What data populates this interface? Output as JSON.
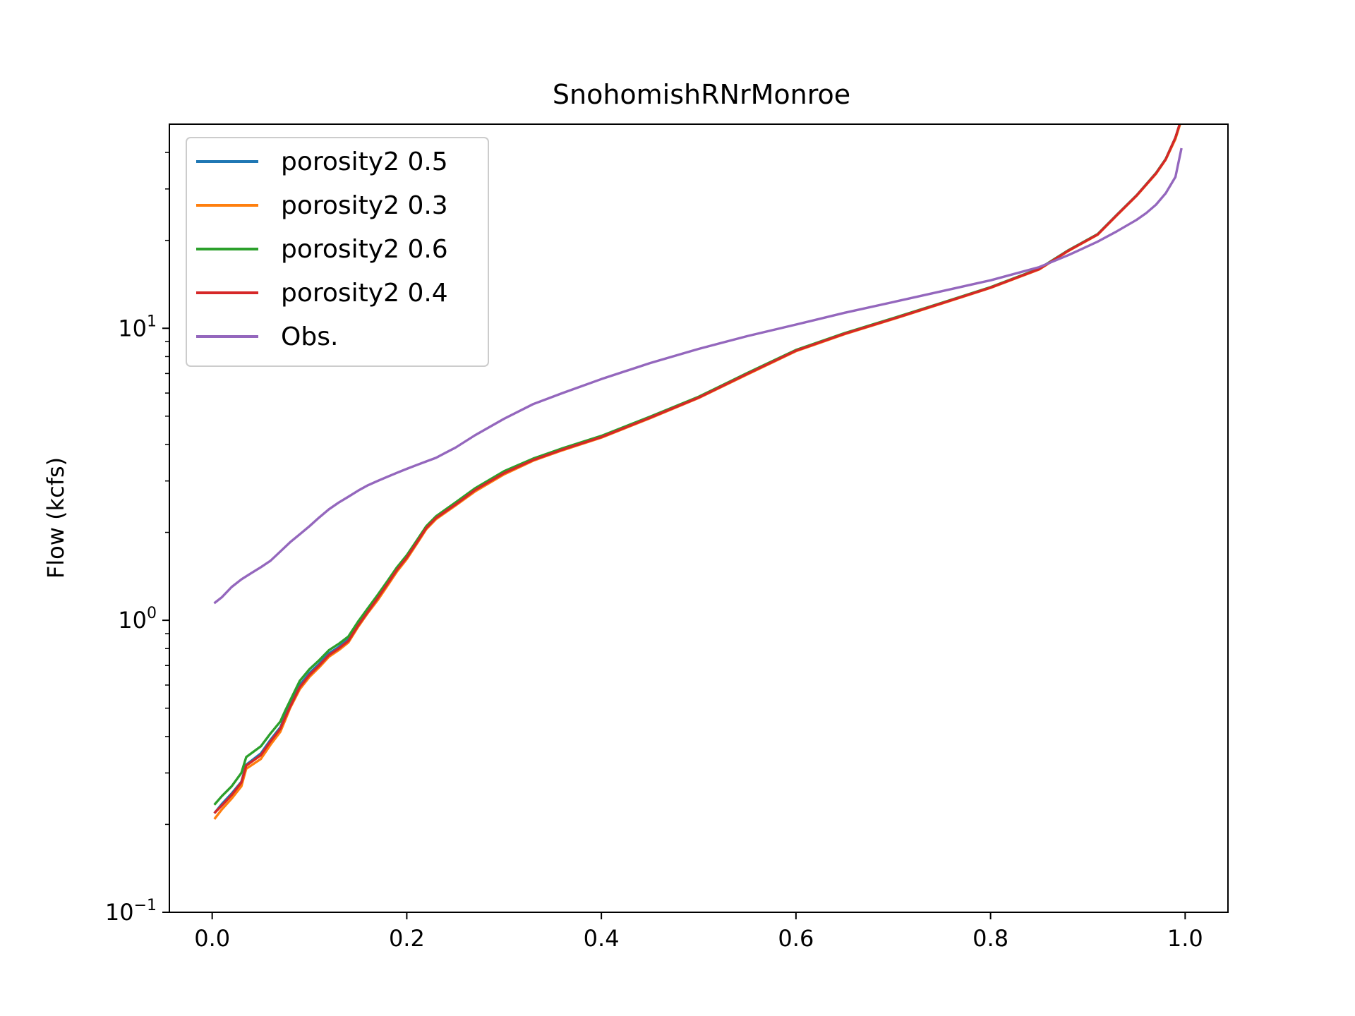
{
  "chart_data": {
    "type": "line",
    "title": "SnohomishRNrMonroe",
    "xlabel": "",
    "ylabel": "Flow (kcfs)",
    "xlim": [
      -0.044,
      1.044
    ],
    "ylim": [
      0.1,
      50
    ],
    "y_scale": "log",
    "xticks": [
      0.0,
      0.2,
      0.4,
      0.6,
      0.8,
      1.0
    ],
    "xtick_labels": [
      "0.0",
      "0.2",
      "0.4",
      "0.6",
      "0.8",
      "1.0"
    ],
    "yticks": [
      {
        "value": 0.1,
        "base": "10",
        "exponent": "−1"
      },
      {
        "value": 1,
        "base": "10",
        "exponent": "0"
      },
      {
        "value": 10,
        "base": "10",
        "exponent": "1"
      }
    ],
    "grid": false,
    "legend": {
      "placement": "upper-left"
    },
    "series": [
      {
        "name": "porosity2 0.5",
        "color": "#1f77b4",
        "x": [
          0.003,
          0.01,
          0.02,
          0.03,
          0.035,
          0.05,
          0.06,
          0.07,
          0.075,
          0.08,
          0.09,
          0.1,
          0.11,
          0.12,
          0.13,
          0.14,
          0.15,
          0.16,
          0.17,
          0.18,
          0.19,
          0.2,
          0.21,
          0.22,
          0.23,
          0.25,
          0.27,
          0.3,
          0.33,
          0.36,
          0.4,
          0.45,
          0.5,
          0.55,
          0.6,
          0.65,
          0.7,
          0.75,
          0.8,
          0.85,
          0.88,
          0.91,
          0.93,
          0.95,
          0.97,
          0.98,
          0.99,
          0.996
        ],
        "y": [
          0.22,
          0.235,
          0.255,
          0.28,
          0.32,
          0.35,
          0.39,
          0.43,
          0.47,
          0.51,
          0.6,
          0.66,
          0.71,
          0.77,
          0.81,
          0.86,
          0.97,
          1.08,
          1.2,
          1.34,
          1.5,
          1.65,
          1.85,
          2.08,
          2.25,
          2.5,
          2.8,
          3.2,
          3.55,
          3.85,
          4.25,
          4.95,
          5.8,
          7.0,
          8.4,
          9.6,
          10.8,
          12.2,
          13.8,
          16.0,
          18.5,
          21.0,
          24.5,
          28.5,
          34.0,
          38.0,
          45.0,
          52.0
        ]
      },
      {
        "name": "porosity2 0.3",
        "color": "#ff7f0e",
        "x": [
          0.003,
          0.01,
          0.02,
          0.03,
          0.035,
          0.05,
          0.06,
          0.07,
          0.075,
          0.08,
          0.09,
          0.1,
          0.11,
          0.12,
          0.13,
          0.14,
          0.15,
          0.16,
          0.17,
          0.18,
          0.19,
          0.2,
          0.21,
          0.22,
          0.23,
          0.25,
          0.27,
          0.3,
          0.33,
          0.36,
          0.4,
          0.45,
          0.5,
          0.55,
          0.6,
          0.65,
          0.7,
          0.75,
          0.8,
          0.85,
          0.88,
          0.91,
          0.93,
          0.95,
          0.97,
          0.98,
          0.99,
          0.996
        ],
        "y": [
          0.21,
          0.225,
          0.245,
          0.27,
          0.31,
          0.335,
          0.375,
          0.415,
          0.455,
          0.5,
          0.58,
          0.64,
          0.69,
          0.75,
          0.79,
          0.84,
          0.95,
          1.06,
          1.17,
          1.31,
          1.47,
          1.62,
          1.82,
          2.05,
          2.22,
          2.47,
          2.76,
          3.16,
          3.52,
          3.82,
          4.22,
          4.92,
          5.77,
          6.95,
          8.35,
          9.55,
          10.75,
          12.15,
          13.75,
          15.9,
          18.4,
          20.9,
          24.4,
          28.4,
          33.8,
          37.8,
          44.5,
          51.5
        ]
      },
      {
        "name": "porosity2 0.6",
        "color": "#2ca02c",
        "x": [
          0.003,
          0.01,
          0.02,
          0.03,
          0.035,
          0.05,
          0.06,
          0.07,
          0.075,
          0.08,
          0.09,
          0.1,
          0.11,
          0.12,
          0.13,
          0.14,
          0.15,
          0.16,
          0.17,
          0.18,
          0.19,
          0.2,
          0.21,
          0.22,
          0.23,
          0.25,
          0.27,
          0.3,
          0.33,
          0.36,
          0.4,
          0.45,
          0.5,
          0.55,
          0.6,
          0.65,
          0.7,
          0.75,
          0.8,
          0.85,
          0.88,
          0.91,
          0.93,
          0.95,
          0.97,
          0.98,
          0.99,
          0.996
        ],
        "y": [
          0.235,
          0.25,
          0.27,
          0.3,
          0.34,
          0.37,
          0.41,
          0.45,
          0.49,
          0.53,
          0.62,
          0.68,
          0.73,
          0.79,
          0.83,
          0.88,
          0.99,
          1.1,
          1.22,
          1.36,
          1.52,
          1.67,
          1.87,
          2.1,
          2.27,
          2.53,
          2.83,
          3.24,
          3.58,
          3.88,
          4.28,
          4.98,
          5.83,
          7.03,
          8.43,
          9.63,
          10.83,
          12.23,
          13.83,
          16.0,
          18.5,
          21.0,
          24.5,
          28.5,
          34.0,
          38.0,
          45.0,
          52.0
        ]
      },
      {
        "name": "porosity2 0.4",
        "color": "#d62728",
        "x": [
          0.003,
          0.01,
          0.02,
          0.03,
          0.035,
          0.05,
          0.06,
          0.07,
          0.075,
          0.08,
          0.09,
          0.1,
          0.11,
          0.12,
          0.13,
          0.14,
          0.15,
          0.16,
          0.17,
          0.18,
          0.19,
          0.2,
          0.21,
          0.22,
          0.23,
          0.25,
          0.27,
          0.3,
          0.33,
          0.36,
          0.4,
          0.45,
          0.5,
          0.55,
          0.6,
          0.65,
          0.7,
          0.75,
          0.8,
          0.85,
          0.88,
          0.91,
          0.93,
          0.95,
          0.97,
          0.98,
          0.99,
          0.996
        ],
        "y": [
          0.22,
          0.232,
          0.252,
          0.278,
          0.318,
          0.345,
          0.385,
          0.425,
          0.465,
          0.505,
          0.59,
          0.65,
          0.7,
          0.76,
          0.8,
          0.85,
          0.96,
          1.07,
          1.19,
          1.33,
          1.49,
          1.64,
          1.84,
          2.07,
          2.24,
          2.49,
          2.79,
          3.19,
          3.54,
          3.84,
          4.24,
          4.94,
          5.79,
          6.98,
          8.38,
          9.58,
          10.78,
          12.18,
          13.78,
          15.95,
          18.45,
          20.95,
          24.45,
          28.45,
          33.9,
          37.9,
          45.0,
          52.0
        ]
      },
      {
        "name": "Obs.",
        "color": "#9467bd",
        "x": [
          0.003,
          0.01,
          0.02,
          0.03,
          0.04,
          0.05,
          0.06,
          0.07,
          0.08,
          0.09,
          0.1,
          0.11,
          0.12,
          0.13,
          0.14,
          0.15,
          0.16,
          0.17,
          0.18,
          0.19,
          0.2,
          0.21,
          0.22,
          0.23,
          0.24,
          0.25,
          0.27,
          0.3,
          0.33,
          0.36,
          0.4,
          0.45,
          0.5,
          0.55,
          0.6,
          0.65,
          0.7,
          0.75,
          0.8,
          0.85,
          0.88,
          0.91,
          0.93,
          0.95,
          0.96,
          0.97,
          0.98,
          0.99,
          0.996
        ],
        "y": [
          1.15,
          1.2,
          1.3,
          1.38,
          1.45,
          1.52,
          1.6,
          1.72,
          1.85,
          1.97,
          2.1,
          2.25,
          2.4,
          2.53,
          2.65,
          2.78,
          2.9,
          3.0,
          3.1,
          3.2,
          3.3,
          3.4,
          3.5,
          3.6,
          3.75,
          3.9,
          4.3,
          4.9,
          5.5,
          6.0,
          6.7,
          7.6,
          8.5,
          9.4,
          10.3,
          11.3,
          12.3,
          13.4,
          14.6,
          16.2,
          17.8,
          19.8,
          21.5,
          23.5,
          24.8,
          26.5,
          29.0,
          33.0,
          41.0
        ]
      }
    ]
  }
}
